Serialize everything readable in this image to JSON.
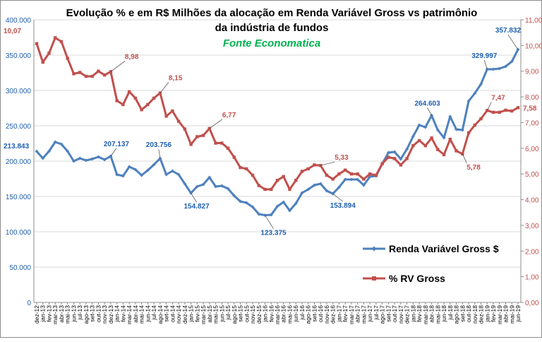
{
  "chart_data": {
    "type": "line",
    "title_line1": "Evolução % e em R$ Milhões da alocação em Renda Variável Gross vs patrimônio",
    "title_line2": "da indústria de fundos",
    "subtitle": "Fonte Economatica",
    "x": [
      "dez-12",
      "jan-13",
      "fev-13",
      "mar-13",
      "abr-13",
      "mai-13",
      "jun-13",
      "jul-13",
      "ago-13",
      "set-13",
      "out-13",
      "nov-13",
      "dez-13",
      "jan-14",
      "fev-14",
      "mar-14",
      "abr-14",
      "mai-14",
      "jun-14",
      "jul-14",
      "ago-14",
      "set-14",
      "out-14",
      "nov-14",
      "dez-14",
      "jan-15",
      "fev-15",
      "mar-15",
      "abr-15",
      "mai-15",
      "jun-15",
      "jul-15",
      "ago-15",
      "set-15",
      "out-15",
      "nov-15",
      "dez-15",
      "jan-16",
      "fev-16",
      "mar-16",
      "abr-16",
      "mai-16",
      "jun-16",
      "jul-16",
      "ago-16",
      "set-16",
      "out-16",
      "nov-16",
      "dez-16",
      "jan-17",
      "fev-17",
      "mar-17",
      "abr-17",
      "mai-17",
      "jun-17",
      "jul-17",
      "ago-17",
      "set-17",
      "out-17",
      "nov-17",
      "dez-17",
      "jan-18",
      "fev-18",
      "mar-18",
      "abr-18",
      "mai-18",
      "jun-18",
      "jul-18",
      "ago-18",
      "set-18",
      "out-18",
      "nov-18",
      "dez-18",
      "jan-19",
      "fev-19",
      "mar-19",
      "abr-19",
      "mai-19",
      "jun-19"
    ],
    "series": [
      {
        "name": "Renda Variável Gross $",
        "axis": "left",
        "color": "#4f81bd",
        "values": [
          213843,
          204000,
          214000,
          227000,
          224000,
          214000,
          200000,
          204000,
          201000,
          203000,
          206000,
          202000,
          207137,
          181000,
          179000,
          192000,
          188000,
          180000,
          187000,
          195000,
          203756,
          181000,
          186000,
          181000,
          168000,
          154827,
          164000,
          167000,
          177000,
          164000,
          165000,
          161000,
          151000,
          143000,
          141000,
          135000,
          125000,
          123375,
          124000,
          136000,
          142000,
          130000,
          140000,
          155000,
          160000,
          166000,
          168000,
          158000,
          153894,
          163000,
          174000,
          174000,
          174000,
          166000,
          178000,
          179000,
          196000,
          212000,
          213000,
          203000,
          217000,
          235000,
          251000,
          248000,
          264603,
          244000,
          233000,
          263000,
          245000,
          244000,
          285000,
          296000,
          309000,
          329997,
          330000,
          331000,
          334000,
          341000,
          357832
        ]
      },
      {
        "name": "% RV Gross",
        "axis": "right",
        "color": "#c0504d",
        "values": [
          10.07,
          9.35,
          9.7,
          10.3,
          10.15,
          9.5,
          8.9,
          8.95,
          8.8,
          8.8,
          9.0,
          8.85,
          8.98,
          7.85,
          7.7,
          8.2,
          7.95,
          7.5,
          7.7,
          7.95,
          8.15,
          7.25,
          7.45,
          7.05,
          6.75,
          6.15,
          6.45,
          6.5,
          6.77,
          6.2,
          6.2,
          6.0,
          5.65,
          5.25,
          5.2,
          4.95,
          4.55,
          4.4,
          4.4,
          4.75,
          4.9,
          4.4,
          4.75,
          5.1,
          5.2,
          5.35,
          5.33,
          4.95,
          4.8,
          5.0,
          5.15,
          5.0,
          5.0,
          4.8,
          5.0,
          4.95,
          5.4,
          5.65,
          5.6,
          5.35,
          5.6,
          6.1,
          6.3,
          6.1,
          6.4,
          5.95,
          5.75,
          6.35,
          5.9,
          5.78,
          6.6,
          6.9,
          7.15,
          7.47,
          7.4,
          7.4,
          7.48,
          7.45,
          7.58
        ]
      }
    ],
    "y_left": {
      "min": 0,
      "max": 400000,
      "ticks": [
        "0",
        "50.000",
        "100.000",
        "150.000",
        "200.000",
        "250.000",
        "300.000",
        "350.000",
        "400.000"
      ]
    },
    "y_right": {
      "min": 0,
      "max": 11,
      "ticks": [
        "0,00",
        "1,00",
        "2,00",
        "3,00",
        "4,00",
        "5,00",
        "6,00",
        "7,00",
        "8,00",
        "9,00",
        "10,00",
        "11,00"
      ]
    },
    "annotations_left": [
      {
        "index": 0,
        "text": "213.843"
      },
      {
        "index": 12,
        "text": "207.137"
      },
      {
        "index": 20,
        "text": "203.756"
      },
      {
        "index": 25,
        "text": "154.827"
      },
      {
        "index": 37,
        "text": "123.375"
      },
      {
        "index": 48,
        "text": "153.894"
      },
      {
        "index": 64,
        "text": "264.603"
      },
      {
        "index": 73,
        "text": "329.997"
      },
      {
        "index": 78,
        "text": "357.832"
      }
    ],
    "annotations_right": [
      {
        "index": 0,
        "text": "10,07"
      },
      {
        "index": 12,
        "text": "8,98"
      },
      {
        "index": 20,
        "text": "8,15"
      },
      {
        "index": 28,
        "text": "6,77"
      },
      {
        "index": 46,
        "text": "5,33"
      },
      {
        "index": 69,
        "text": "5,78"
      },
      {
        "index": 73,
        "text": "7,47"
      },
      {
        "index": 78,
        "text": "7,58"
      }
    ],
    "grid": true,
    "legend_position": "bottom-right"
  }
}
